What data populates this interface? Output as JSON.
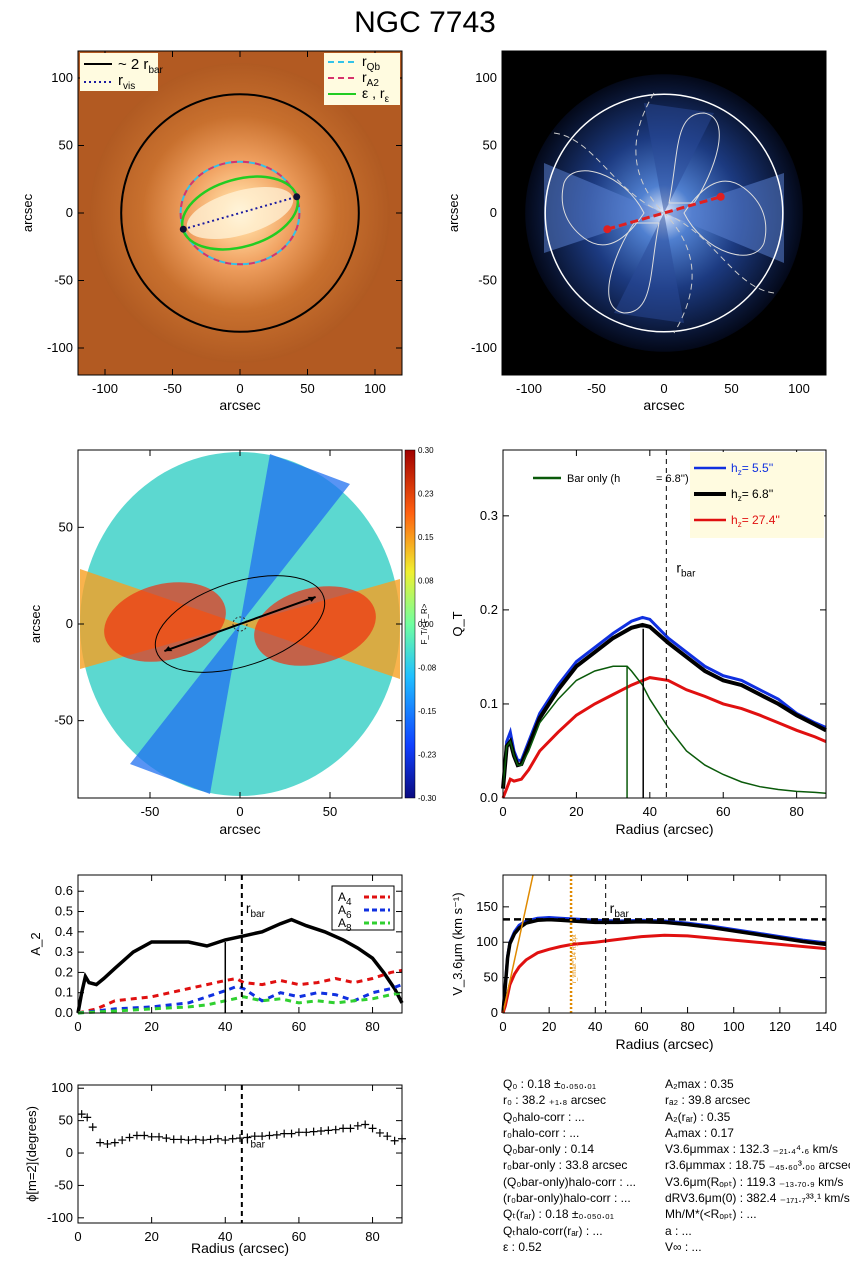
{
  "title": "NGC 7743",
  "colors": {
    "bar_scale": "#000000",
    "r_vis": "#1a1aa0",
    "r_qb": "#33c3e8",
    "r_a2": "#d6336c",
    "ellipse_fit": "#22cc22",
    "h_low": "#1030e0",
    "h_mid": "#000000",
    "h_high": "#e01010",
    "bar_only": "#0a5a0a",
    "orange": "#e08a00"
  },
  "panel1": {
    "xlabel": "arcsec",
    "ylabel": "arcsec",
    "xticks": [
      "-100",
      "-50",
      "0",
      "50",
      "100"
    ],
    "yticks": [
      "100",
      "50",
      "0",
      "-50",
      "-100"
    ],
    "legend_left": [
      {
        "label": "~ 2 r",
        "sub": "bar"
      },
      {
        "label": "r",
        "sub": "vis"
      }
    ],
    "legend_right": [
      {
        "label": "r",
        "sub": "Qb"
      },
      {
        "label": "r",
        "sub": "A2"
      },
      {
        "label": "ε , r",
        "sub": "ε"
      }
    ]
  },
  "panel2": {
    "xlabel": "arcsec",
    "ylabel": "arcsec",
    "xticks": [
      "-100",
      "-50",
      "0",
      "50",
      "100"
    ],
    "yticks": [
      "100",
      "50",
      "0",
      "-50",
      "-100"
    ]
  },
  "panel3": {
    "xlabel": "arcsec",
    "ylabel": "arcsec",
    "xticks": [
      "-50",
      "0",
      "50"
    ],
    "yticks": [
      "50",
      "0",
      "-50"
    ],
    "colorbar_ticks": [
      "0.30",
      "0.23",
      "0.15",
      "0.08",
      "0.00",
      "-0.08",
      "-0.15",
      "-0.23",
      "-0.30"
    ],
    "colorbar_label": "F_T/<F_R>"
  },
  "panel4": {
    "xlabel": "Radius (arcsec)",
    "ylabel": "Q_T",
    "xticks": [
      "0",
      "20",
      "40",
      "60",
      "80"
    ],
    "yticks": [
      "0.0",
      "0.1",
      "0.2",
      "0.3"
    ],
    "bar_only_label": "Bar only (h",
    "bar_only_value": "=  6.8'')",
    "legend": [
      {
        "prefix": "h",
        "value": "=   5.5''"
      },
      {
        "prefix": "h",
        "value": "=   6.8''"
      },
      {
        "prefix": "h",
        "value": "=  27.4''"
      }
    ],
    "rbar_label": "r",
    "rbar_sub": "bar"
  },
  "panel5": {
    "ylabel": "A_2",
    "xticks": [
      "0",
      "20",
      "40",
      "60",
      "80"
    ],
    "yticks": [
      "0.0",
      "0.1",
      "0.2",
      "0.3",
      "0.4",
      "0.5",
      "0.6"
    ],
    "legend": [
      "A",
      "A",
      "A"
    ],
    "legend_subs": [
      "4",
      "6",
      "8"
    ],
    "rbar_label": "r",
    "rbar_sub": "bar"
  },
  "panel6": {
    "xlabel": "Radius (arcsec)",
    "ylabel": "V_3.6μm (km s⁻¹)",
    "xticks": [
      "0",
      "20",
      "40",
      "60",
      "80",
      "100",
      "120",
      "140"
    ],
    "yticks": [
      "0",
      "50",
      "100",
      "150"
    ],
    "rbar_label": "r",
    "rbar_sub": "bar",
    "vertical_label": "r_vmax^1/4 R_opt"
  },
  "panel7": {
    "xlabel": "Radius (arcsec)",
    "ylabel": "ϕ[m=2](degrees)",
    "xticks": [
      "0",
      "20",
      "40",
      "60",
      "80"
    ],
    "yticks": [
      "100",
      "50",
      "0",
      "-50",
      "-100"
    ],
    "rbar_label": "r",
    "rbar_sub": "bar"
  },
  "params_left": [
    "Q₀ :  0.18 ±₀.₀₅₀.₀₁",
    "r₀ :  38.2 ₊₁.₈ arcsec",
    "Q₀halo-corr : ...",
    "r₀halo-corr : ...",
    "Q₀bar-only :  0.14",
    "r₀bar-only :  33.8 arcsec",
    "(Q₀bar-only)halo-corr : ...",
    "(r₀bar-only)halo-corr : ...",
    "Qₜ(rₐᵣ) :  0.18 ±₀.₀₅₀.₀₁",
    "Qₜhalo-corr(rₐᵣ) : ...",
    "ε :  0.52"
  ],
  "params_right": [
    "A₂max :  0.35",
    "rₐ₂ :  39.8 arcsec",
    "A₂(rₐᵣ) :  0.35",
    "A₄max :  0.17",
    "V3.6μmmax :  132.3 ₋₂₁.₄⁴.₆ km/s",
    "r3.6μmmax :  18.75 ₋₄₅.₆₀³.₀₀ arcsec",
    "V3.6μm(Rₒₚₜ) :  119.3 ₋₁₃.₇₀.₉ km/s",
    "dRV3.6μm(0) :  382.4 ₋₁₇₁.₇³³.¹ km/s/kpc",
    "Mh/M*(<Rₒₚₜ) : ...",
    "a : ...",
    "V∞ : ..."
  ],
  "chart_data": [
    {
      "type": "heatmap",
      "name": "image-with-ellipses",
      "xlim": [
        -120,
        120
      ],
      "ylim": [
        -120,
        120
      ],
      "bar_circle_radius": 88,
      "bar_endpoints": [
        [
          -42,
          -12
        ],
        [
          42,
          12
        ]
      ],
      "ellipse_qb": {
        "a": 44,
        "b": 38
      },
      "ellipse_eps": {
        "a": 44,
        "b": 25,
        "pa_deg": 16
      }
    },
    {
      "type": "heatmap",
      "name": "residual-map",
      "xlim": [
        -120,
        120
      ],
      "ylim": [
        -120,
        120
      ],
      "circle_radius": 88
    },
    {
      "type": "heatmap",
      "name": "tangential-force-map",
      "xlim": [
        -90,
        90
      ],
      "ylim": [
        -90,
        90
      ],
      "clim": [
        -0.3,
        0.3
      ]
    },
    {
      "type": "line",
      "name": "QT-profile",
      "xlim": [
        0,
        88
      ],
      "ylim": [
        0,
        0.37
      ],
      "rbar": 44.5,
      "series": [
        {
          "name": "h=5.5''",
          "x": [
            0,
            1,
            2,
            3,
            4,
            5,
            7,
            10,
            15,
            20,
            25,
            30,
            35,
            38,
            40,
            45,
            50,
            55,
            60,
            65,
            70,
            75,
            80,
            85,
            88
          ],
          "y": [
            0.01,
            0.06,
            0.07,
            0.05,
            0.04,
            0.04,
            0.06,
            0.09,
            0.12,
            0.145,
            0.16,
            0.175,
            0.188,
            0.192,
            0.19,
            0.17,
            0.155,
            0.14,
            0.13,
            0.125,
            0.115,
            0.105,
            0.09,
            0.08,
            0.075
          ]
        },
        {
          "name": "h=6.8''",
          "x": [
            0,
            1,
            2,
            3,
            4,
            5,
            7,
            10,
            15,
            20,
            25,
            30,
            35,
            38,
            40,
            45,
            50,
            55,
            60,
            65,
            70,
            75,
            80,
            85,
            88
          ],
          "y": [
            0.01,
            0.055,
            0.06,
            0.045,
            0.035,
            0.036,
            0.055,
            0.085,
            0.115,
            0.14,
            0.155,
            0.17,
            0.181,
            0.184,
            0.182,
            0.165,
            0.15,
            0.135,
            0.125,
            0.12,
            0.11,
            0.1,
            0.088,
            0.078,
            0.072
          ]
        },
        {
          "name": "h=27.4''",
          "x": [
            0,
            1,
            2,
            3,
            5,
            7,
            10,
            15,
            20,
            25,
            30,
            35,
            40,
            45,
            50,
            55,
            60,
            65,
            70,
            75,
            80,
            85,
            88
          ],
          "y": [
            0.0,
            0.01,
            0.02,
            0.018,
            0.02,
            0.03,
            0.05,
            0.07,
            0.088,
            0.1,
            0.11,
            0.12,
            0.128,
            0.125,
            0.115,
            0.108,
            0.1,
            0.095,
            0.088,
            0.08,
            0.072,
            0.065,
            0.06
          ]
        },
        {
          "name": "Bar only",
          "x": [
            0,
            1,
            2,
            3,
            4,
            5,
            7,
            10,
            15,
            20,
            25,
            30,
            33.8,
            35,
            38,
            40,
            45,
            50,
            55,
            60,
            65,
            70,
            75,
            80,
            85,
            88
          ],
          "y": [
            0.01,
            0.055,
            0.06,
            0.045,
            0.035,
            0.035,
            0.05,
            0.08,
            0.105,
            0.125,
            0.135,
            0.14,
            0.14,
            0.135,
            0.12,
            0.105,
            0.075,
            0.05,
            0.035,
            0.025,
            0.017,
            0.012,
            0.009,
            0.007,
            0.006,
            0.005
          ]
        }
      ],
      "vlines": [
        {
          "x": 33.8,
          "color": "bar_only"
        },
        {
          "x": 38.2,
          "color": "h_mid"
        }
      ]
    },
    {
      "type": "line",
      "name": "fourier-amplitudes",
      "xlim": [
        0,
        88
      ],
      "ylim": [
        0,
        0.68
      ],
      "rbar": 44.5,
      "vline": 40,
      "series": [
        {
          "name": "A2",
          "x": [
            0,
            1,
            2,
            3,
            5,
            7,
            10,
            15,
            20,
            25,
            30,
            35,
            40,
            45,
            50,
            55,
            58,
            62,
            67,
            72,
            76,
            80,
            83,
            86,
            88
          ],
          "y": [
            0.0,
            0.1,
            0.18,
            0.15,
            0.14,
            0.17,
            0.22,
            0.3,
            0.35,
            0.35,
            0.35,
            0.33,
            0.36,
            0.38,
            0.4,
            0.44,
            0.46,
            0.43,
            0.4,
            0.36,
            0.32,
            0.27,
            0.2,
            0.12,
            0.05
          ]
        },
        {
          "name": "A4",
          "x": [
            0,
            5,
            10,
            15,
            20,
            25,
            30,
            35,
            40,
            43,
            45,
            50,
            55,
            60,
            65,
            70,
            75,
            80,
            85,
            88
          ],
          "y": [
            0.0,
            0.02,
            0.06,
            0.07,
            0.08,
            0.1,
            0.12,
            0.14,
            0.16,
            0.17,
            0.15,
            0.14,
            0.16,
            0.14,
            0.15,
            0.17,
            0.15,
            0.17,
            0.2,
            0.21
          ]
        },
        {
          "name": "A6",
          "x": [
            0,
            5,
            10,
            15,
            20,
            25,
            30,
            35,
            40,
            43,
            45,
            50,
            55,
            60,
            65,
            70,
            75,
            80,
            85,
            88
          ],
          "y": [
            0.0,
            0.01,
            0.02,
            0.025,
            0.03,
            0.04,
            0.05,
            0.08,
            0.11,
            0.13,
            0.12,
            0.06,
            0.1,
            0.08,
            0.1,
            0.09,
            0.06,
            0.1,
            0.12,
            0.14
          ]
        },
        {
          "name": "A8",
          "x": [
            0,
            5,
            10,
            15,
            20,
            25,
            30,
            35,
            40,
            45,
            50,
            55,
            60,
            65,
            70,
            75,
            80,
            85,
            88
          ],
          "y": [
            0.0,
            0.005,
            0.01,
            0.015,
            0.02,
            0.025,
            0.03,
            0.04,
            0.06,
            0.08,
            0.06,
            0.07,
            0.05,
            0.06,
            0.05,
            0.06,
            0.07,
            0.09,
            0.1
          ]
        }
      ]
    },
    {
      "type": "line",
      "name": "rotation-curve",
      "xlim": [
        0,
        140
      ],
      "ylim": [
        0,
        195
      ],
      "rbar": 44.5,
      "r_opt_quarter": 29.5,
      "vmax": 132.3,
      "series": [
        {
          "name": "h=5.5''",
          "x": [
            0,
            1,
            2,
            3,
            5,
            7,
            10,
            15,
            20,
            25,
            30,
            40,
            50,
            60,
            70,
            80,
            90,
            100,
            110,
            120,
            130,
            140
          ],
          "y": [
            0,
            40,
            80,
            100,
            115,
            124,
            130,
            134,
            135,
            134,
            133,
            131,
            130,
            131,
            130,
            127,
            123,
            118,
            113,
            108,
            103,
            99
          ]
        },
        {
          "name": "h=6.8''",
          "x": [
            0,
            1,
            2,
            3,
            5,
            7,
            10,
            15,
            20,
            25,
            30,
            40,
            50,
            60,
            70,
            80,
            90,
            100,
            110,
            120,
            130,
            140
          ],
          "y": [
            0,
            38,
            78,
            98,
            112,
            120,
            127,
            131,
            132,
            131,
            130,
            128,
            128,
            129,
            128,
            125,
            121,
            116,
            111,
            106,
            101,
            97
          ]
        },
        {
          "name": "h=27.4''",
          "x": [
            0,
            1,
            2,
            3,
            5,
            7,
            10,
            15,
            20,
            25,
            30,
            40,
            50,
            60,
            70,
            80,
            90,
            100,
            110,
            120,
            130,
            140
          ],
          "y": [
            0,
            10,
            25,
            40,
            55,
            65,
            75,
            85,
            90,
            94,
            97,
            100,
            104,
            108,
            110,
            109,
            106,
            103,
            100,
            97,
            94,
            91
          ]
        },
        {
          "name": "inner slope",
          "x": [
            0,
            13
          ],
          "y": [
            0,
            195
          ]
        }
      ]
    },
    {
      "type": "scatter",
      "name": "phase-angle",
      "xlim": [
        0,
        88
      ],
      "ylim": [
        -108,
        105
      ],
      "rbar": 44.5,
      "x": [
        1,
        2.5,
        4,
        6,
        8,
        10,
        12,
        14,
        16,
        18,
        20,
        22,
        24,
        26,
        28,
        30,
        32,
        34,
        36,
        38,
        40,
        42,
        44,
        46,
        48,
        50,
        52,
        54,
        56,
        58,
        60,
        62,
        64,
        66,
        68,
        70,
        72,
        74,
        76,
        78,
        80,
        82,
        84,
        86,
        88
      ],
      "y": [
        60,
        55,
        40,
        16,
        14,
        16,
        20,
        24,
        27,
        27,
        25,
        25,
        23,
        21,
        21,
        20,
        21,
        20,
        21,
        22,
        20,
        22,
        23,
        24,
        26,
        26,
        27,
        28,
        30,
        30,
        32,
        32,
        33,
        34,
        35,
        36,
        38,
        38,
        42,
        44,
        38,
        31,
        26,
        19,
        22
      ]
    }
  ]
}
